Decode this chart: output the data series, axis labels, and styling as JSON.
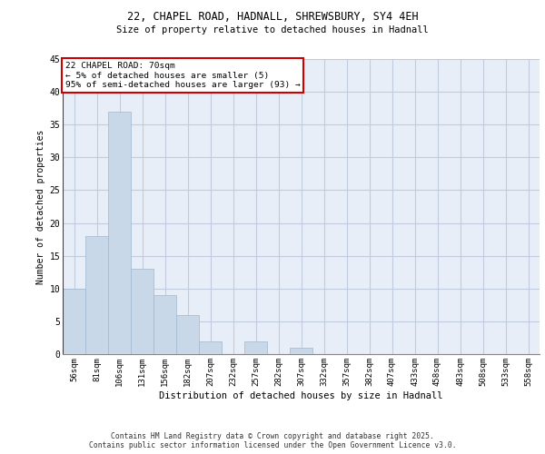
{
  "title1": "22, CHAPEL ROAD, HADNALL, SHREWSBURY, SY4 4EH",
  "title2": "Size of property relative to detached houses in Hadnall",
  "xlabel": "Distribution of detached houses by size in Hadnall",
  "ylabel": "Number of detached properties",
  "categories": [
    "56sqm",
    "81sqm",
    "106sqm",
    "131sqm",
    "156sqm",
    "182sqm",
    "207sqm",
    "232sqm",
    "257sqm",
    "282sqm",
    "307sqm",
    "332sqm",
    "357sqm",
    "382sqm",
    "407sqm",
    "433sqm",
    "458sqm",
    "483sqm",
    "508sqm",
    "533sqm",
    "558sqm"
  ],
  "values": [
    10,
    18,
    37,
    13,
    9,
    6,
    2,
    0,
    2,
    0,
    1,
    0,
    0,
    0,
    0,
    0,
    0,
    0,
    0,
    0,
    0
  ],
  "bar_color": "#c8d8e8",
  "bar_edgecolor": "#a0b8d0",
  "annotation_box_text": "22 CHAPEL ROAD: 70sqm\n← 5% of detached houses are smaller (5)\n95% of semi-detached houses are larger (93) →",
  "annotation_box_edgecolor": "#cc0000",
  "vline_color": "#cc0000",
  "ylim": [
    0,
    45
  ],
  "yticks": [
    0,
    5,
    10,
    15,
    20,
    25,
    30,
    35,
    40,
    45
  ],
  "grid_color": "#c0ccdd",
  "background_color": "#e8eef8",
  "footer1": "Contains HM Land Registry data © Crown copyright and database right 2025.",
  "footer2": "Contains public sector information licensed under the Open Government Licence v3.0."
}
